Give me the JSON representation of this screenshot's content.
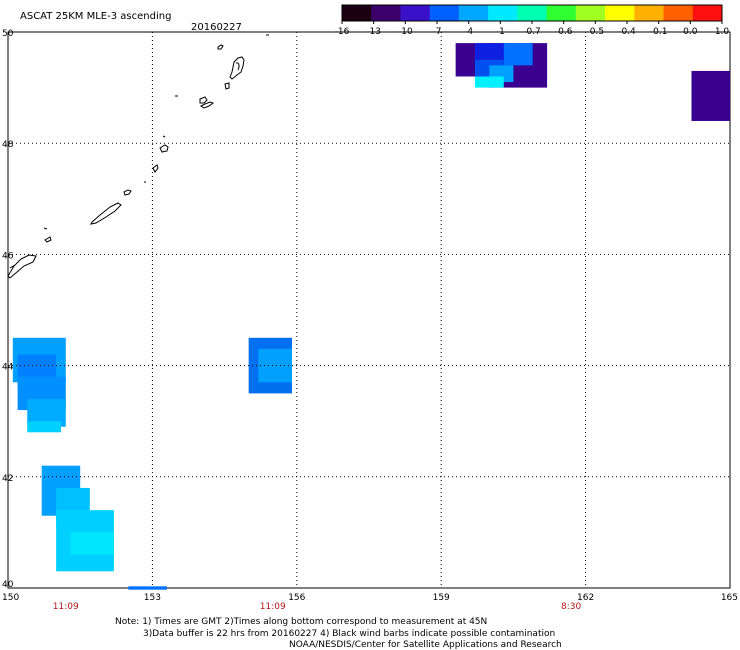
{
  "title": "ASCAT 25KM MLE-3 ascending",
  "date": "20160227",
  "colorbar": {
    "labels": [
      "-16",
      "-13",
      "-10",
      "-7",
      "-4",
      "-1",
      "-0.7",
      "-0.6",
      "-0.5",
      "-0.4",
      "-0.1",
      "0.0",
      "1.0"
    ],
    "colors": [
      "#1a0010",
      "#3c006a",
      "#3a10c8",
      "#0060ff",
      "#00a8ff",
      "#00eaff",
      "#00ffb0",
      "#30ff30",
      "#a0ff20",
      "#ffff00",
      "#ffb000",
      "#ff6000",
      "#ff1010"
    ]
  },
  "axes": {
    "lon_ticks": [
      "150",
      "153",
      "156",
      "159",
      "162",
      "165"
    ],
    "lat_ticks": [
      "50",
      "48",
      "46",
      "44",
      "42",
      "40"
    ]
  },
  "time_labels": [
    {
      "lon": 151.2,
      "text": "11:09"
    },
    {
      "lon": 155.5,
      "text": "11:09"
    },
    {
      "lon": 161.7,
      "text": "8:30"
    }
  ],
  "notes": [
    "Note: 1) Times are GMT 2)Times along bottom correspond to measurement at 45N",
    "3)Data buffer is 22 hrs from 20160227 4) Black wind barbs indicate possible contamination",
    "NOAA/NESDIS/Center for Satellite Applications and Research"
  ],
  "data_cells": [
    {
      "lon": [
        160.0,
        161.2
      ],
      "lat": [
        49.0,
        49.8
      ],
      "color": "#3a0090"
    },
    {
      "lon": [
        159.3,
        160.2
      ],
      "lat": [
        49.2,
        49.8
      ],
      "color": "#3a0090"
    },
    {
      "lon": [
        159.7,
        160.5
      ],
      "lat": [
        49.5,
        49.8
      ],
      "color": "#1020e0"
    },
    {
      "lon": [
        160.3,
        160.9
      ],
      "lat": [
        49.4,
        49.8
      ],
      "color": "#0070ff"
    },
    {
      "lon": [
        159.7,
        160.3
      ],
      "lat": [
        49.2,
        49.5
      ],
      "color": "#0050f0"
    },
    {
      "lon": [
        160.0,
        160.5
      ],
      "lat": [
        49.1,
        49.4
      ],
      "color": "#00a0ff"
    },
    {
      "lon": [
        159.7,
        160.3
      ],
      "lat": [
        49.0,
        49.2
      ],
      "color": "#00f0ff"
    },
    {
      "lon": [
        164.2,
        165.0
      ],
      "lat": [
        48.4,
        49.3
      ],
      "color": "#3a0090"
    },
    {
      "lon": [
        150.1,
        151.2
      ],
      "lat": [
        43.7,
        44.5
      ],
      "color": "#00a0ff"
    },
    {
      "lon": [
        150.2,
        151.0
      ],
      "lat": [
        43.6,
        44.2
      ],
      "color": "#0080ff"
    },
    {
      "lon": [
        150.2,
        151.2
      ],
      "lat": [
        43.2,
        43.8
      ],
      "color": "#0090ff"
    },
    {
      "lon": [
        150.4,
        151.2
      ],
      "lat": [
        42.9,
        43.4
      ],
      "color": "#00aaff"
    },
    {
      "lon": [
        150.4,
        151.1
      ],
      "lat": [
        42.8,
        43.0
      ],
      "color": "#00d0ff"
    },
    {
      "lon": [
        155.0,
        155.9
      ],
      "lat": [
        43.5,
        44.5
      ],
      "color": "#0070f0"
    },
    {
      "lon": [
        155.2,
        155.9
      ],
      "lat": [
        43.7,
        44.3
      ],
      "color": "#00a0ff"
    },
    {
      "lon": [
        150.7,
        151.5
      ],
      "lat": [
        41.3,
        42.2
      ],
      "color": "#00a0ff"
    },
    {
      "lon": [
        151.0,
        151.7
      ],
      "lat": [
        41.1,
        41.8
      ],
      "color": "#00c0ff"
    },
    {
      "lon": [
        151.0,
        152.2
      ],
      "lat": [
        40.3,
        41.4
      ],
      "color": "#00d0ff"
    },
    {
      "lon": [
        151.3,
        152.2
      ],
      "lat": [
        40.6,
        41.0
      ],
      "color": "#00e6ff"
    },
    {
      "lon": [
        152.5,
        153.3
      ],
      "lat": [
        39.97,
        40.03
      ],
      "color": "#0070ff"
    }
  ]
}
